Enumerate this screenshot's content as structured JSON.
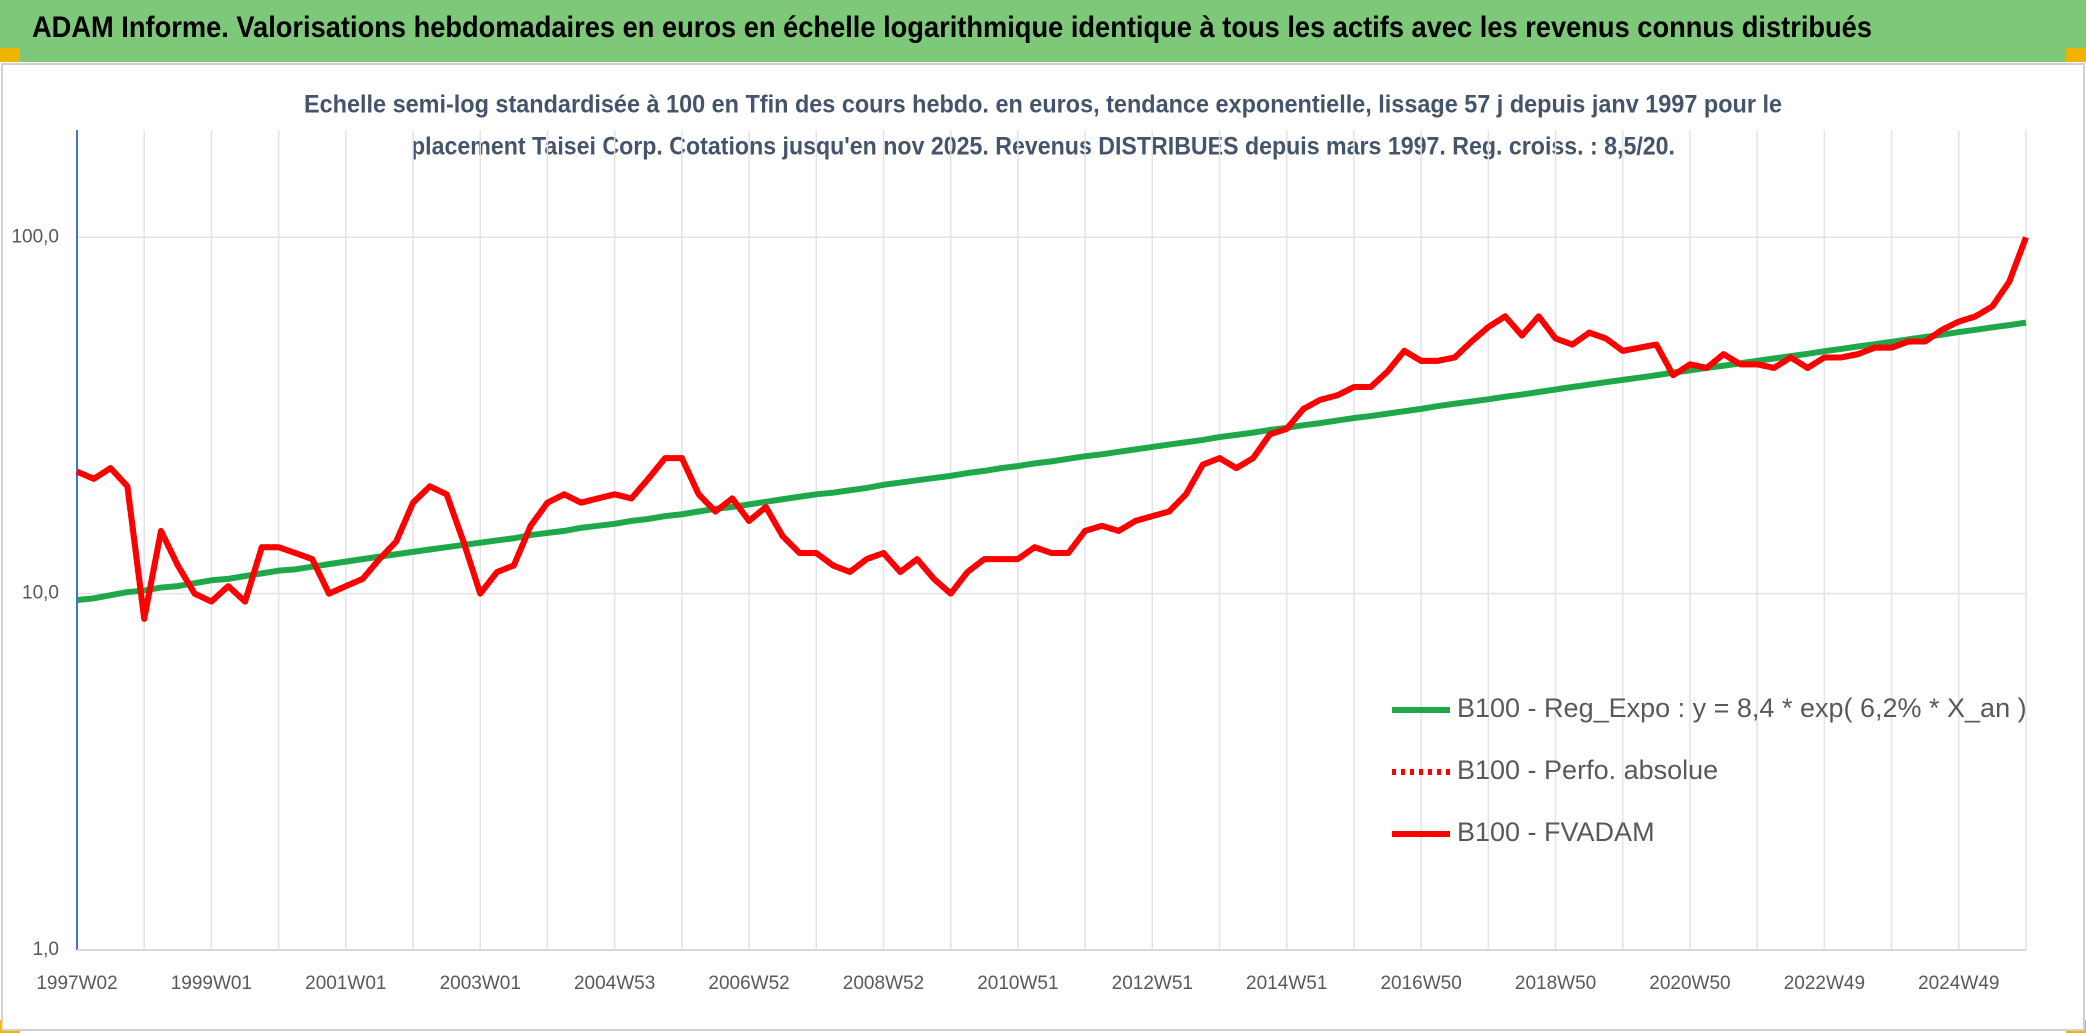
{
  "header": {
    "title": "ADAM Informe. Valorisations hebdomadaires en euros en échelle logarithmique identique à tous les actifs avec les revenus connus distribués"
  },
  "chart_data": {
    "type": "line",
    "title": "Echelle semi-log standardisée à 100 en Tfin des cours hebdo. en euros, tendance exponentielle, lissage 57 j depuis janv 1997 pour le",
    "subtitle": "placement Taisei Corp. Cotations jusqu'en nov 2025. Revenus DISTRIBUES depuis mars 1997. Reg. croiss. : 8,5/20.",
    "categories": [
      "1997W02",
      null,
      null,
      null,
      null,
      null,
      null,
      null,
      "1999W01",
      null,
      null,
      null,
      null,
      null,
      null,
      null,
      "2001W01",
      null,
      null,
      null,
      null,
      null,
      null,
      null,
      "2003W01",
      null,
      null,
      null,
      null,
      null,
      null,
      null,
      "2004W53",
      null,
      null,
      null,
      null,
      null,
      null,
      null,
      "2006W52",
      null,
      null,
      null,
      null,
      null,
      null,
      null,
      "2008W52",
      null,
      null,
      null,
      null,
      null,
      null,
      null,
      "2010W51",
      null,
      null,
      null,
      null,
      null,
      null,
      null,
      "2012W51",
      null,
      null,
      null,
      null,
      null,
      null,
      null,
      "2014W51",
      null,
      null,
      null,
      null,
      null,
      null,
      null,
      "2016W50",
      null,
      null,
      null,
      null,
      null,
      null,
      null,
      "2018W50",
      null,
      null,
      null,
      null,
      null,
      null,
      null,
      "2020W50",
      null,
      null,
      null,
      null,
      null,
      null,
      null,
      "2022W49",
      null,
      null,
      null,
      null,
      null,
      null,
      null,
      "2024W49",
      null,
      null,
      null,
      null
    ],
    "series": [
      {
        "name": "B100 - Reg_Expo : y = 8,4 * exp( 6,2% *  X_an )",
        "color": "#1fa84a",
        "style": "solid",
        "values": [
          9.6,
          9.7,
          9.9,
          10.1,
          10.2,
          10.4,
          10.5,
          10.7,
          10.9,
          11.0,
          11.2,
          11.4,
          11.6,
          11.7,
          11.9,
          12.1,
          12.3,
          12.5,
          12.7,
          12.9,
          13.1,
          13.3,
          13.5,
          13.7,
          13.9,
          14.1,
          14.3,
          14.6,
          14.8,
          15.0,
          15.3,
          15.5,
          15.7,
          16.0,
          16.2,
          16.5,
          16.7,
          17.0,
          17.3,
          17.5,
          17.8,
          18.1,
          18.4,
          18.7,
          19.0,
          19.2,
          19.5,
          19.8,
          20.2,
          20.5,
          20.8,
          21.1,
          21.4,
          21.8,
          22.1,
          22.5,
          22.8,
          23.2,
          23.5,
          23.9,
          24.3,
          24.6,
          25.0,
          25.4,
          25.8,
          26.2,
          26.6,
          27.0,
          27.5,
          27.9,
          28.3,
          28.8,
          29.2,
          29.7,
          30.1,
          30.6,
          31.1,
          31.5,
          32.0,
          32.5,
          33.0,
          33.6,
          34.1,
          34.6,
          35.1,
          35.7,
          36.2,
          36.8,
          37.4,
          38.0,
          38.6,
          39.2,
          39.8,
          40.4,
          41.0,
          41.7,
          42.3,
          43.0,
          43.6,
          44.3,
          45.0,
          45.7,
          46.4,
          47.1,
          47.9,
          48.6,
          49.4,
          50.1,
          50.9,
          51.7,
          52.5,
          53.3,
          54.2,
          55.0,
          55.9,
          56.7,
          57.6
        ]
      },
      {
        "name": "B100 - Perfo. absolue",
        "color": "#ff0000",
        "style": "dotted",
        "values": [
          22,
          21,
          22.5,
          20,
          8.5,
          15,
          12,
          10,
          9.5,
          10.5,
          9.5,
          13.5,
          13.5,
          13,
          12.5,
          10,
          10.5,
          11,
          12.5,
          14,
          18,
          20,
          19,
          14,
          10,
          11.5,
          12,
          15.5,
          18,
          19,
          18,
          18.5,
          19,
          18.5,
          21,
          24,
          24,
          19,
          17,
          18.5,
          16,
          17.5,
          14.5,
          13,
          13,
          12,
          11.5,
          12.5,
          13,
          11.5,
          12.5,
          11,
          10,
          11.5,
          12.5,
          12.5,
          12.5,
          13.5,
          13,
          13,
          15,
          15.5,
          15,
          16,
          16.5,
          17,
          19,
          23,
          24,
          22.5,
          24,
          28,
          29,
          33,
          35,
          36,
          38,
          38,
          42,
          48,
          45,
          45,
          46,
          51,
          56,
          60,
          53,
          60,
          52,
          50,
          54,
          52,
          48,
          49,
          50,
          41,
          44,
          43,
          47,
          44,
          44,
          43,
          46,
          43,
          46,
          46,
          47,
          49,
          49,
          51,
          51,
          55,
          58,
          60,
          64,
          75,
          100
        ]
      },
      {
        "name": "B100 - FVADAM",
        "color": "#ff0000",
        "style": "solid",
        "values": [
          22,
          21,
          22.5,
          20,
          8.5,
          15,
          12,
          10,
          9.5,
          10.5,
          9.5,
          13.5,
          13.5,
          13,
          12.5,
          10,
          10.5,
          11,
          12.5,
          14,
          18,
          20,
          19,
          14,
          10,
          11.5,
          12,
          15.5,
          18,
          19,
          18,
          18.5,
          19,
          18.5,
          21,
          24,
          24,
          19,
          17,
          18.5,
          16,
          17.5,
          14.5,
          13,
          13,
          12,
          11.5,
          12.5,
          13,
          11.5,
          12.5,
          11,
          10,
          11.5,
          12.5,
          12.5,
          12.5,
          13.5,
          13,
          13,
          15,
          15.5,
          15,
          16,
          16.5,
          17,
          19,
          23,
          24,
          22.5,
          24,
          28,
          29,
          33,
          35,
          36,
          38,
          38,
          42,
          48,
          45,
          45,
          46,
          51,
          56,
          60,
          53,
          60,
          52,
          50,
          54,
          52,
          48,
          49,
          50,
          41,
          44,
          43,
          47,
          44,
          44,
          43,
          46,
          43,
          46,
          46,
          47,
          49,
          49,
          51,
          51,
          55,
          58,
          60,
          64,
          75,
          100
        ]
      }
    ],
    "ylim": [
      1,
      200
    ],
    "log_scale": true,
    "yticks": [
      {
        "value": 1,
        "label": "1,0"
      },
      {
        "value": 10,
        "label": "10,0"
      },
      {
        "value": 100,
        "label": "100,0"
      }
    ],
    "grid": true,
    "legend_position": "lower right"
  }
}
